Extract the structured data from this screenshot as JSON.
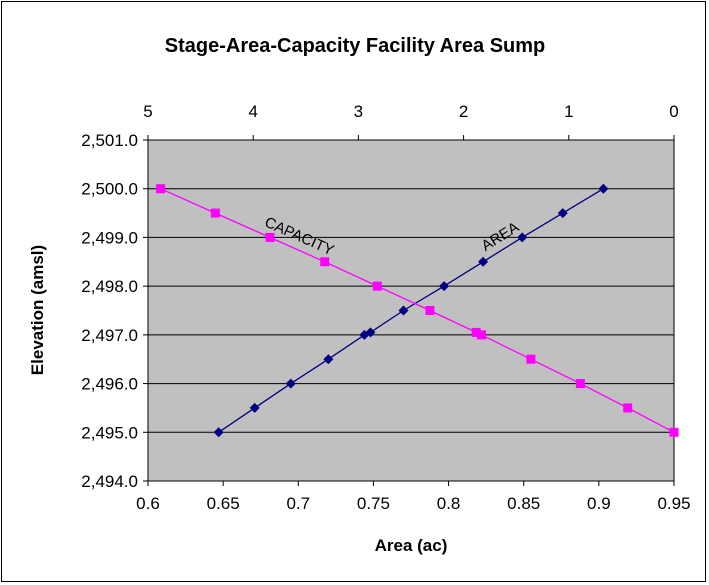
{
  "chart_data": {
    "type": "line",
    "title": "Stage-Area-Capacity Facility Area Sump",
    "xlabel": "Area (ac)",
    "ylabel": "Elevation (amsl)",
    "x_bottom": {
      "range": [
        0.6,
        0.95
      ],
      "ticks": [
        "0.6",
        "0.65",
        "0.7",
        "0.75",
        "0.8",
        "0.85",
        "0.9",
        "0.95"
      ]
    },
    "x_top": {
      "range": [
        5,
        0
      ],
      "ticks": [
        "5",
        "4",
        "3",
        "2",
        "1",
        "0"
      ]
    },
    "y": {
      "range": [
        2494,
        2501
      ],
      "ticks": [
        "2,494.0",
        "2,495.0",
        "2,496.0",
        "2,497.0",
        "2,498.0",
        "2,499.0",
        "2,500.0",
        "2,501.0"
      ]
    },
    "grid": "horizontal",
    "plot_background": "#c0c0c0",
    "series": [
      {
        "name": "AREA",
        "axis": "bottom",
        "color": "#000080",
        "marker": "diamond",
        "points": [
          {
            "x": 0.647,
            "y": 2495.0
          },
          {
            "x": 0.671,
            "y": 2495.5
          },
          {
            "x": 0.695,
            "y": 2496.0
          },
          {
            "x": 0.72,
            "y": 2496.5
          },
          {
            "x": 0.744,
            "y": 2497.0
          },
          {
            "x": 0.748,
            "y": 2497.05
          },
          {
            "x": 0.77,
            "y": 2497.5
          },
          {
            "x": 0.797,
            "y": 2498.0
          },
          {
            "x": 0.823,
            "y": 2498.5
          },
          {
            "x": 0.849,
            "y": 2499.0
          },
          {
            "x": 0.876,
            "y": 2499.5
          },
          {
            "x": 0.903,
            "y": 2500.0
          }
        ]
      },
      {
        "name": "CAPACITY",
        "axis": "top",
        "color": "#ff00ff",
        "marker": "square",
        "points": [
          {
            "x": 0.0,
            "y": 2495.0
          },
          {
            "x": 0.44,
            "y": 2495.5
          },
          {
            "x": 0.89,
            "y": 2496.0
          },
          {
            "x": 1.36,
            "y": 2496.5
          },
          {
            "x": 1.83,
            "y": 2497.0
          },
          {
            "x": 1.88,
            "y": 2497.05
          },
          {
            "x": 2.32,
            "y": 2497.5
          },
          {
            "x": 2.82,
            "y": 2498.0
          },
          {
            "x": 3.32,
            "y": 2498.5
          },
          {
            "x": 3.84,
            "y": 2499.0
          },
          {
            "x": 4.36,
            "y": 2499.5
          },
          {
            "x": 4.88,
            "y": 2500.0
          }
        ]
      }
    ],
    "annotations": [
      {
        "text": "CAPACITY",
        "series": "CAPACITY"
      },
      {
        "text": "AREA",
        "series": "AREA"
      }
    ]
  }
}
